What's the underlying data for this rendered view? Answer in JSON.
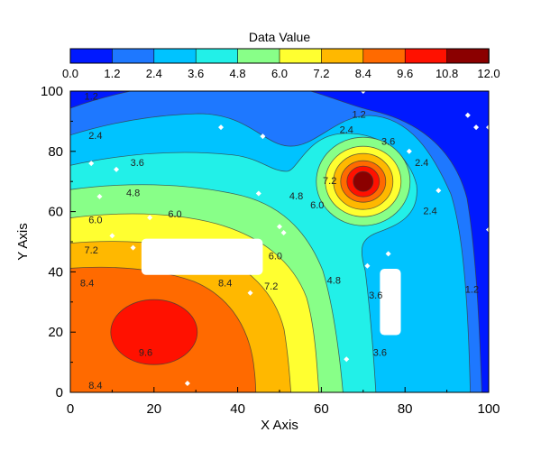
{
  "chart_data": {
    "type": "contour",
    "colorbar_title": "Data Value",
    "xlabel": "X Axis",
    "ylabel": "Y Axis",
    "xlim": [
      0,
      100
    ],
    "ylim": [
      0,
      100
    ],
    "x_ticks": [
      "0",
      "20",
      "40",
      "60",
      "80",
      "100"
    ],
    "y_ticks": [
      "0",
      "20",
      "40",
      "60",
      "80",
      "100"
    ],
    "levels": [
      "0.0",
      "1.2",
      "2.4",
      "3.6",
      "4.8",
      "6.0",
      "7.2",
      "8.4",
      "9.6",
      "10.8",
      "12.0"
    ],
    "level_colors": [
      "#0019ff",
      "#1e78ff",
      "#00c3ff",
      "#22f0e8",
      "#88ff88",
      "#ffff30",
      "#ffb800",
      "#ff6a00",
      "#ff1100",
      "#8b0000"
    ],
    "peaks": [
      {
        "x": 20,
        "y": 20,
        "value": 10.2
      },
      {
        "x": 70,
        "y": 70,
        "value": 11.5
      }
    ],
    "masked_regions": [
      {
        "x": [
          17,
          46
        ],
        "y": [
          39,
          51
        ]
      },
      {
        "x": [
          74,
          79
        ],
        "y": [
          19,
          41
        ]
      }
    ],
    "contour_labels": [
      {
        "text": "1.2",
        "x": 5,
        "y": 98
      },
      {
        "text": "2.4",
        "x": 6,
        "y": 85
      },
      {
        "text": "3.6",
        "x": 16,
        "y": 76
      },
      {
        "text": "4.8",
        "x": 15,
        "y": 66
      },
      {
        "text": "6.0",
        "x": 6,
        "y": 57
      },
      {
        "text": "6.0",
        "x": 25,
        "y": 59
      },
      {
        "text": "7.2",
        "x": 5,
        "y": 47
      },
      {
        "text": "8.4",
        "x": 4,
        "y": 36
      },
      {
        "text": "8.4",
        "x": 37,
        "y": 36
      },
      {
        "text": "7.2",
        "x": 48,
        "y": 35
      },
      {
        "text": "6.0",
        "x": 49,
        "y": 45
      },
      {
        "text": "4.8",
        "x": 63,
        "y": 37
      },
      {
        "text": "4.8",
        "x": 54,
        "y": 65
      },
      {
        "text": "6.0",
        "x": 59,
        "y": 62
      },
      {
        "text": "7.2",
        "x": 62,
        "y": 70
      },
      {
        "text": "9.6",
        "x": 18,
        "y": 13
      },
      {
        "text": "8.4",
        "x": 6,
        "y": 2
      },
      {
        "text": "1.2",
        "x": 69,
        "y": 92
      },
      {
        "text": "2.4",
        "x": 66,
        "y": 87
      },
      {
        "text": "3.6",
        "x": 76,
        "y": 83
      },
      {
        "text": "3.6",
        "x": 73,
        "y": 32
      },
      {
        "text": "3.6",
        "x": 74,
        "y": 13
      },
      {
        "text": "2.4",
        "x": 84,
        "y": 76
      },
      {
        "text": "2.4",
        "x": 86,
        "y": 60
      },
      {
        "text": "1.2",
        "x": 96,
        "y": 34
      }
    ],
    "markers": [
      {
        "x": 36,
        "y": 88
      },
      {
        "x": 46,
        "y": 85
      },
      {
        "x": 5,
        "y": 76
      },
      {
        "x": 11,
        "y": 74
      },
      {
        "x": 45,
        "y": 66
      },
      {
        "x": 7,
        "y": 65
      },
      {
        "x": 19,
        "y": 58
      },
      {
        "x": 50,
        "y": 55
      },
      {
        "x": 51,
        "y": 53
      },
      {
        "x": 81,
        "y": 80
      },
      {
        "x": 88,
        "y": 67
      },
      {
        "x": 95,
        "y": 92
      },
      {
        "x": 97,
        "y": 88
      },
      {
        "x": 100,
        "y": 88
      },
      {
        "x": 100,
        "y": 54
      },
      {
        "x": 10,
        "y": 52
      },
      {
        "x": 76,
        "y": 46
      },
      {
        "x": 71,
        "y": 42
      },
      {
        "x": 15,
        "y": 48
      },
      {
        "x": 43,
        "y": 33
      },
      {
        "x": 66,
        "y": 11
      },
      {
        "x": 28,
        "y": 3
      },
      {
        "x": 70,
        "y": 100
      }
    ]
  }
}
